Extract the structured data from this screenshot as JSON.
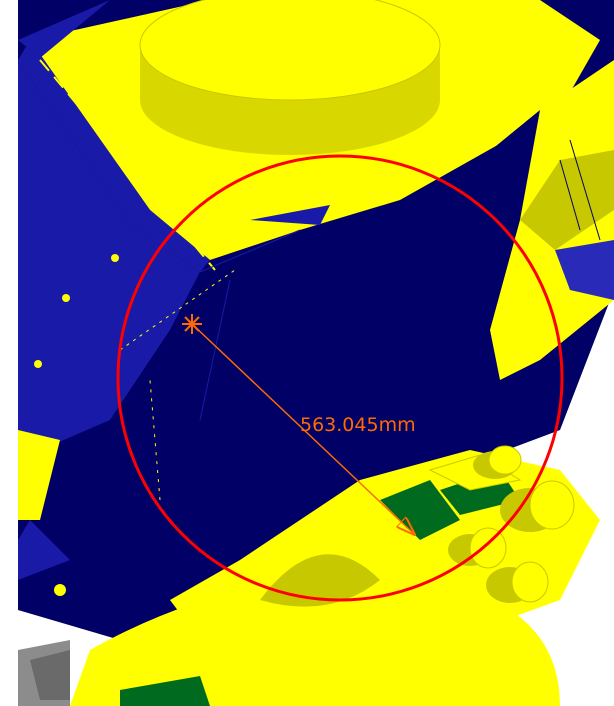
{
  "viewport": {
    "measurement": {
      "label": "563.045mm",
      "value": 563.045,
      "unit": "mm",
      "color": "#ff6a00"
    },
    "highlight_circle_color": "#ff0000",
    "model_colors": {
      "navy": "#000066",
      "blue": "#1a1aa8",
      "yellow": "#ffff00",
      "yellow_dark": "#c8c800",
      "green": "#006b1f",
      "gray": "#8c8c8c",
      "background": "#ffffff"
    }
  }
}
